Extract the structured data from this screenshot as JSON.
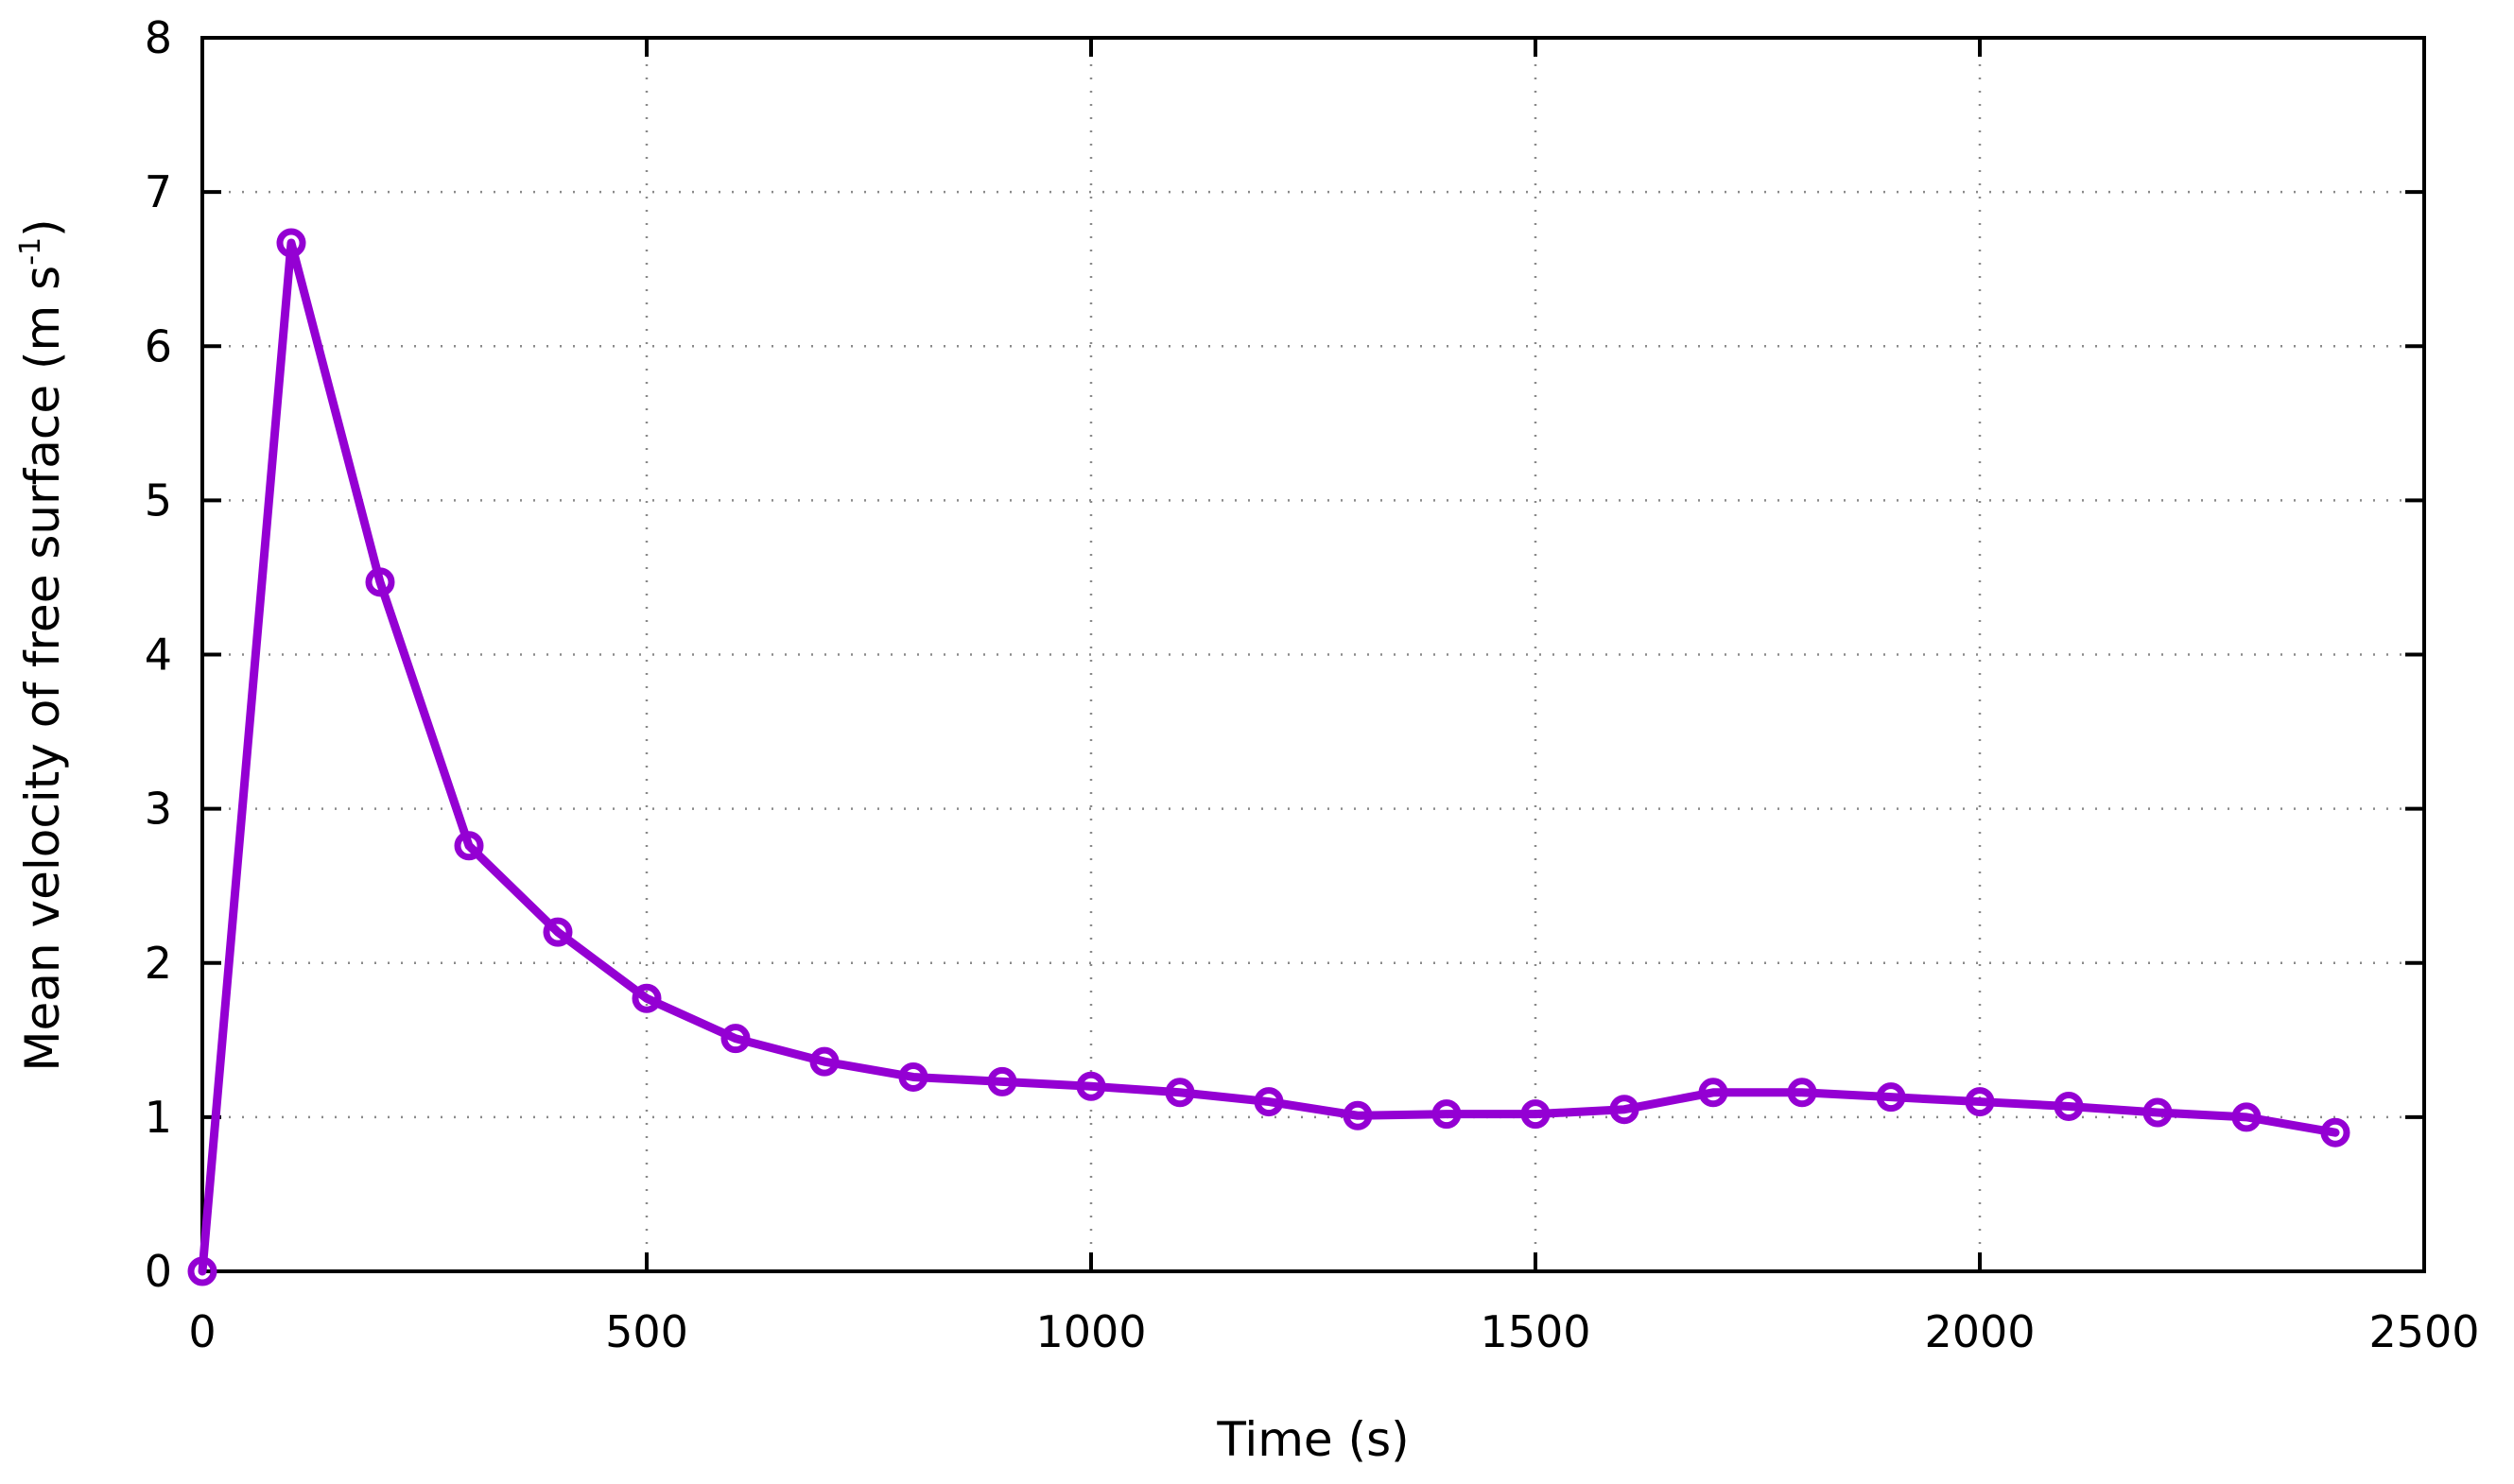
{
  "chart_data": {
    "type": "line",
    "xlabel": "Time (s)",
    "ylabel": {
      "main": "Mean velocity of free surface (m s",
      "superscript": "-1",
      "tail": ")"
    },
    "xlim": [
      0,
      2500
    ],
    "ylim": [
      0,
      8
    ],
    "xticks": [
      0,
      500,
      1000,
      1500,
      2000,
      2500
    ],
    "yticks": [
      0,
      1,
      2,
      3,
      4,
      5,
      6,
      7,
      8
    ],
    "grid": true,
    "series": [
      {
        "color": "#9400d3",
        "marker": "open-circle",
        "x": [
          0,
          100,
          200,
          300,
          400,
          500,
          600,
          700,
          800,
          900,
          1000,
          1100,
          1200,
          1300,
          1400,
          1500,
          1600,
          1700,
          1800,
          1900,
          2000,
          2100,
          2200,
          2300,
          2400
        ],
        "y": [
          0,
          6.67,
          4.47,
          2.76,
          2.2,
          1.77,
          1.51,
          1.36,
          1.26,
          1.23,
          1.2,
          1.16,
          1.1,
          1.01,
          1.02,
          1.02,
          1.05,
          1.16,
          1.16,
          1.13,
          1.1,
          1.07,
          1.03,
          1.0,
          0.9
        ]
      }
    ]
  }
}
